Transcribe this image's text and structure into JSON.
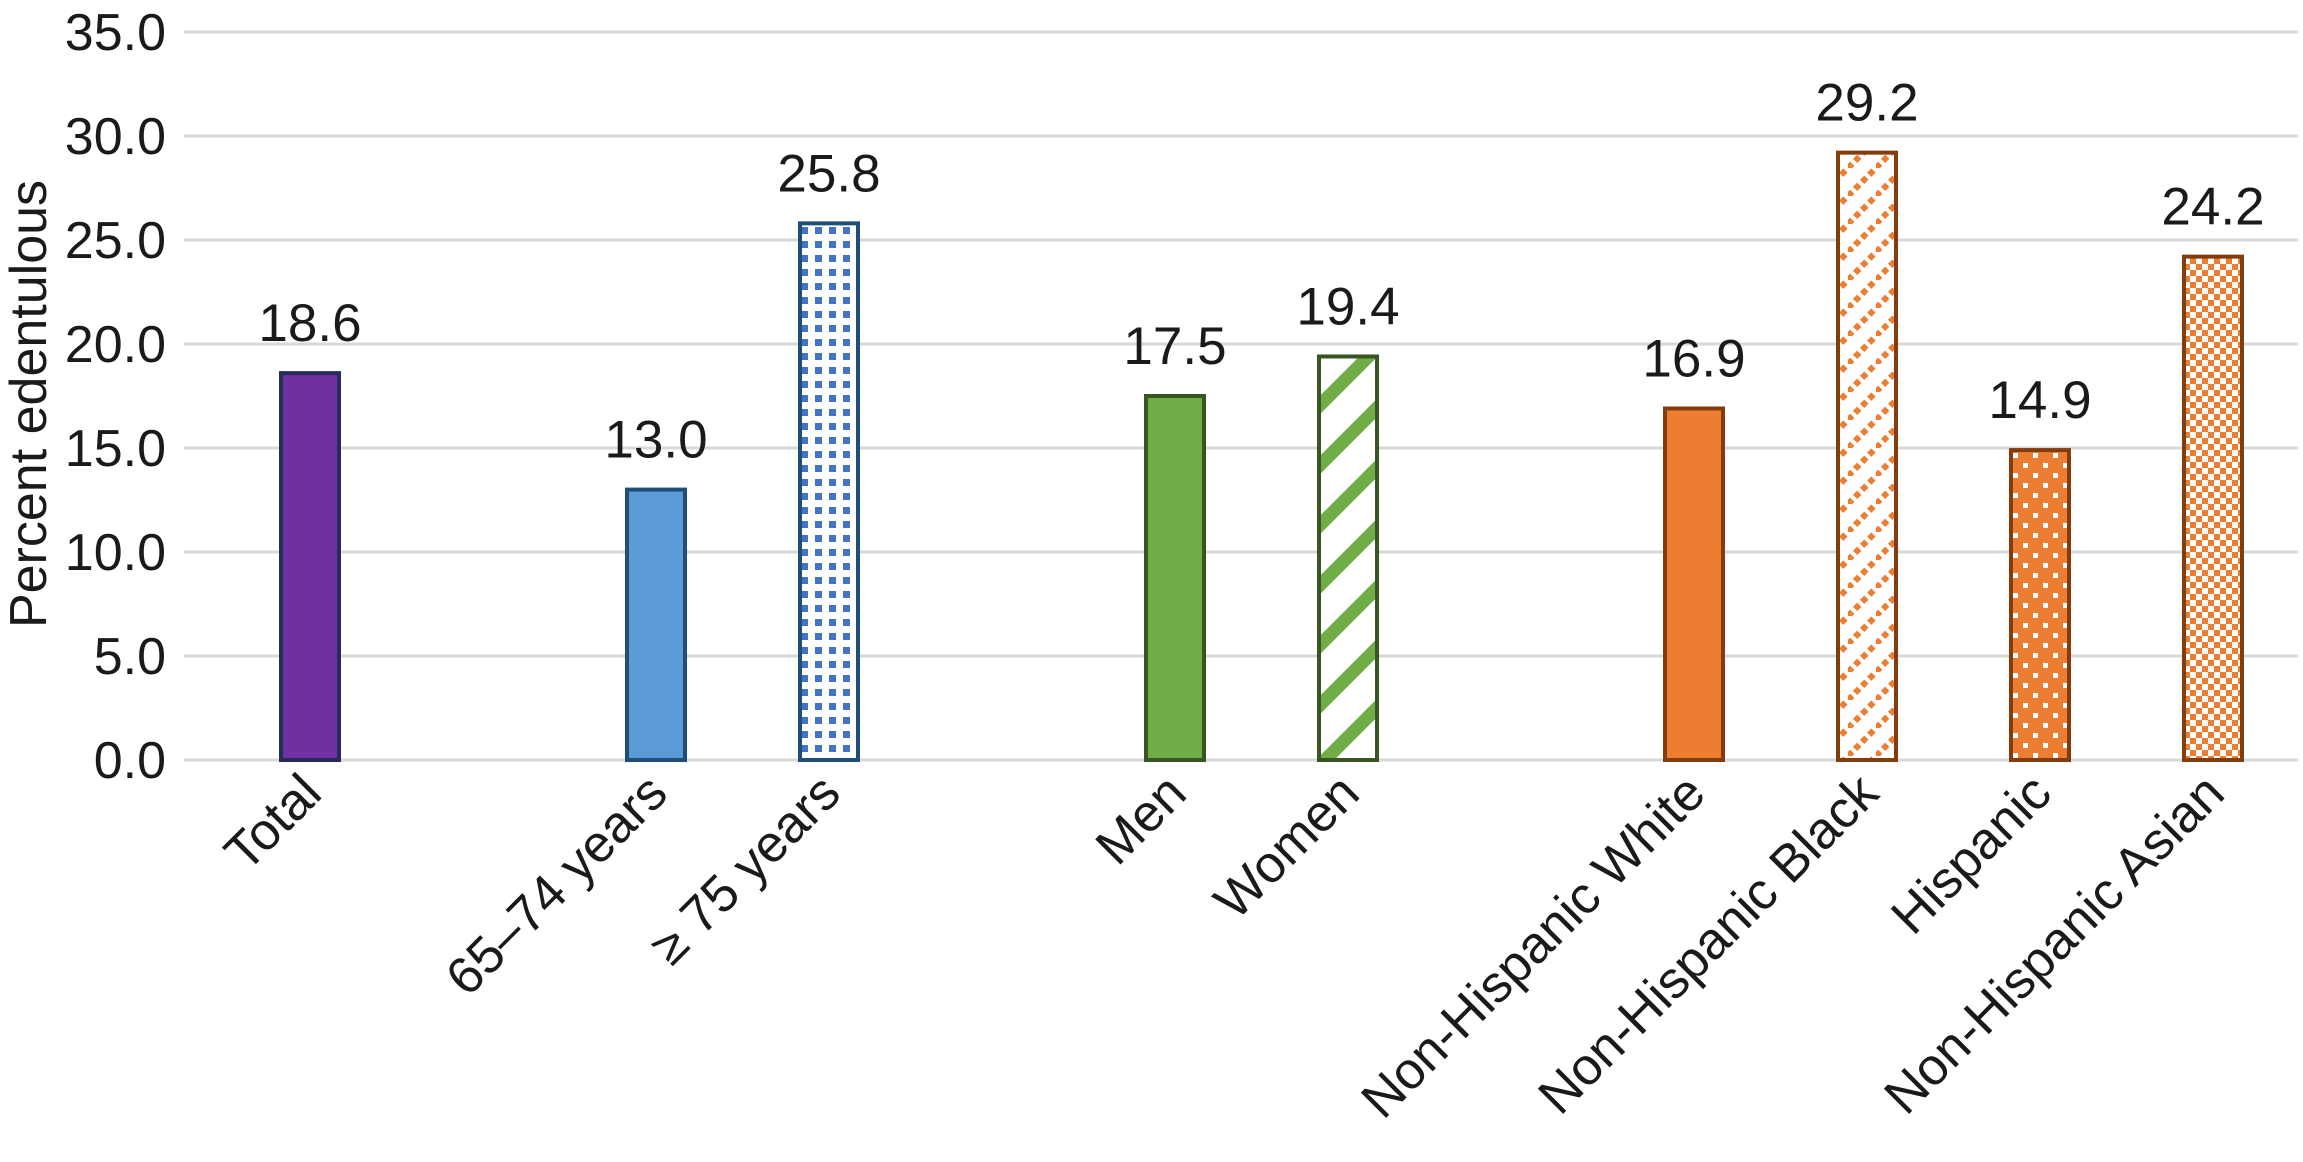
{
  "chart_data": {
    "type": "bar",
    "title": "",
    "xlabel": "",
    "ylabel": "Percent edentulous",
    "ylim": [
      0,
      35
    ],
    "yticks": [
      "0.0",
      "5.0",
      "10.0",
      "15.0",
      "20.0",
      "25.0",
      "30.0",
      "35.0"
    ],
    "grid": true,
    "legend": "none",
    "groups": [
      {
        "bars": [
          {
            "category": "Total",
            "value": 18.6,
            "label": "18.6",
            "fill": "#7030a0",
            "stroke": "#262b5e",
            "pattern": "solid"
          }
        ]
      },
      {
        "bars": [
          {
            "category": "65–74 years",
            "value": 13.0,
            "label": "13.0",
            "fill": "#5b9bd5",
            "stroke": "#1f4e79",
            "pattern": "solid"
          },
          {
            "category": "≥ 75 years",
            "value": 25.8,
            "label": "25.8",
            "fill": "#4472c4",
            "stroke": "#1f4e79",
            "pattern": "dots"
          }
        ]
      },
      {
        "bars": [
          {
            "category": "Men",
            "value": 17.5,
            "label": "17.5",
            "fill": "#70ad47",
            "stroke": "#375623",
            "pattern": "solid"
          },
          {
            "category": "Women",
            "value": 19.4,
            "label": "19.4",
            "fill": "#70ad47",
            "stroke": "#375623",
            "pattern": "wide-diagonal"
          }
        ]
      },
      {
        "bars": [
          {
            "category": "Non-Hispanic White",
            "value": 16.9,
            "label": "16.9",
            "fill": "#ed7d31",
            "stroke": "#843c0c",
            "pattern": "solid"
          },
          {
            "category": "Non-Hispanic Black",
            "value": 29.2,
            "label": "29.2",
            "fill": "#ed7d31",
            "stroke": "#843c0c",
            "pattern": "dashed-diagonal"
          },
          {
            "category": "Hispanic",
            "value": 14.9,
            "label": "14.9",
            "fill": "#ed7d31",
            "stroke": "#843c0c",
            "pattern": "white-dots"
          },
          {
            "category": "Non-Hispanic Asian",
            "value": 24.2,
            "label": "24.2",
            "fill": "#ed7d31",
            "stroke": "#843c0c",
            "pattern": "checker"
          }
        ]
      }
    ]
  }
}
